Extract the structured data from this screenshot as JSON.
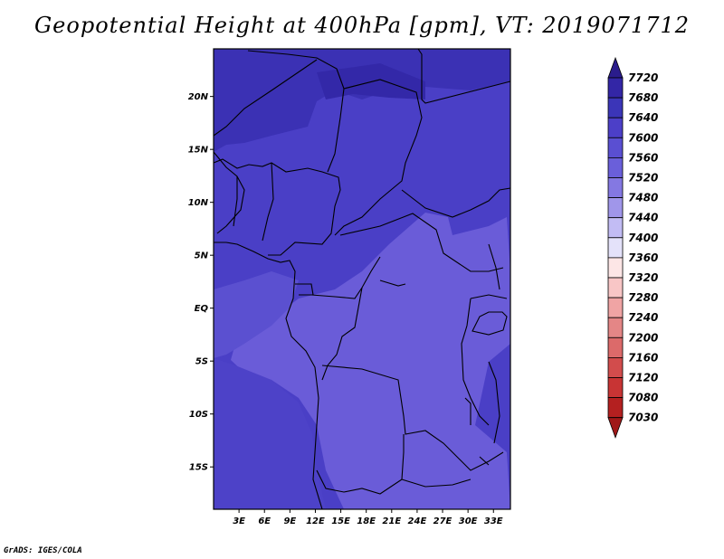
{
  "title": "Geopotential Height at 400hPa [gpm], VT: 2019071712",
  "credit": "GrADS: IGES/COLA",
  "map": {
    "lat_ticks": [
      "20N",
      "15N",
      "10N",
      "5N",
      "EQ",
      "5S",
      "10S",
      "15S"
    ],
    "lon_ticks": [
      "3E",
      "6E",
      "9E",
      "12E",
      "15E",
      "18E",
      "21E",
      "24E",
      "27E",
      "30E",
      "33E"
    ],
    "lat_range": [
      -19,
      24.5
    ],
    "lon_range": [
      0,
      35
    ]
  },
  "colorbar": {
    "levels": [
      "7720",
      "7680",
      "7640",
      "7600",
      "7560",
      "7520",
      "7480",
      "7440",
      "7400",
      "7360",
      "7320",
      "7280",
      "7240",
      "7200",
      "7160",
      "7120",
      "7080",
      "7030"
    ],
    "colors": [
      "#2a1c8c",
      "#3326a6",
      "#3b35b8",
      "#4c3fc8",
      "#5a4fd2",
      "#6a5fda",
      "#8478e2",
      "#a096ea",
      "#c2bcf4",
      "#e4e2fa",
      "#fde6e6",
      "#f8c6c6",
      "#f0a4a4",
      "#e48686",
      "#dc6a6a",
      "#d24c4c",
      "#c83434",
      "#b42020",
      "#a01818"
    ]
  },
  "field_colors": {
    "high": "#3f33b5",
    "mid": "#4a3fc6",
    "low": "#6a5cd8",
    "lowest": "#7a6ee0"
  }
}
